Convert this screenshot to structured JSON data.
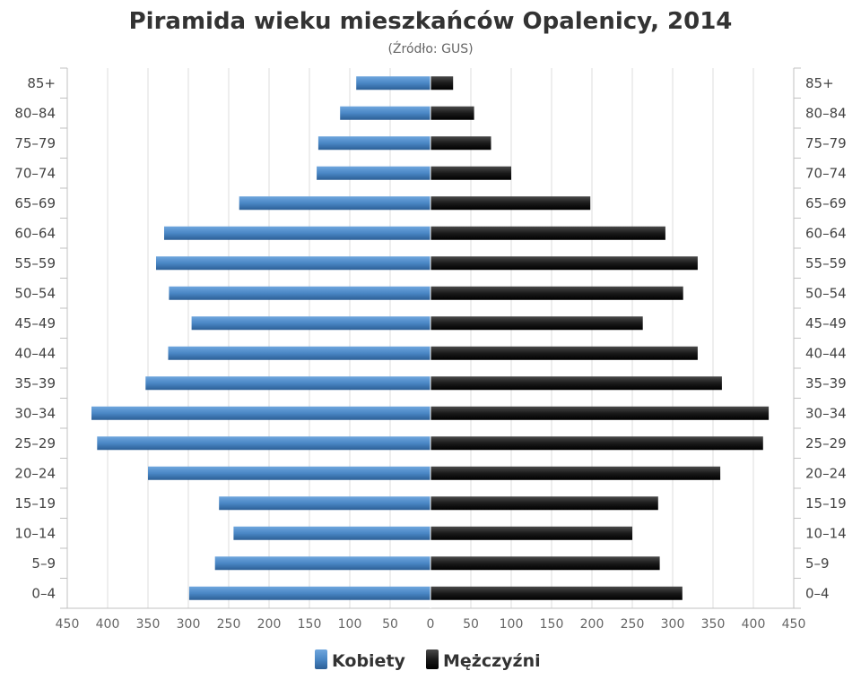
{
  "chart_data": {
    "type": "bar",
    "orientation": "horizontal-pyramid",
    "title": "Piramida wieku mieszkańców Opalenicy, 2014",
    "subtitle": "(Źródło: GUS)",
    "categories": [
      "85+",
      "80–84",
      "75–79",
      "70–74",
      "65–69",
      "60–64",
      "55–59",
      "50–54",
      "45–49",
      "40–44",
      "35–39",
      "30–34",
      "25–29",
      "20–24",
      "15–19",
      "10–14",
      "5–9",
      "0–4"
    ],
    "series": [
      {
        "name": "Kobiety",
        "side": "left",
        "color": "#4a87c5",
        "values": [
          92,
          112,
          139,
          141,
          237,
          330,
          340,
          324,
          296,
          325,
          353,
          420,
          413,
          350,
          262,
          244,
          267,
          299
        ]
      },
      {
        "name": "Mężczyźni",
        "side": "right",
        "color": "#1a1a1a",
        "values": [
          28,
          54,
          75,
          100,
          198,
          291,
          331,
          313,
          263,
          331,
          361,
          419,
          412,
          359,
          282,
          250,
          284,
          312
        ]
      }
    ],
    "xlim": [
      -450,
      450
    ],
    "xticks": [
      "450",
      "400",
      "350",
      "300",
      "250",
      "200",
      "150",
      "100",
      "50",
      "0",
      "50",
      "100",
      "150",
      "200",
      "250",
      "300",
      "350",
      "400",
      "450"
    ],
    "grid": true,
    "legend": "bottom-center"
  }
}
